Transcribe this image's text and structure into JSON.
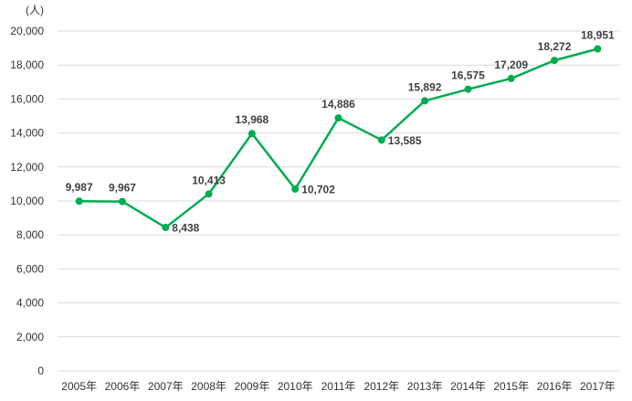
{
  "chart_data": {
    "type": "line",
    "title": "",
    "unit_label": "(人)",
    "xlabel": "",
    "ylabel": "",
    "legend_position": "none",
    "grid": "horizontal",
    "categories": [
      "2005年",
      "2006年",
      "2007年",
      "2008年",
      "2009年",
      "2010年",
      "2011年",
      "2012年",
      "2013年",
      "2014年",
      "2015年",
      "2016年",
      "2017年"
    ],
    "values": [
      9987,
      9967,
      8438,
      10413,
      13968,
      10702,
      14886,
      13585,
      15892,
      16575,
      17209,
      18272,
      18951
    ],
    "point_labels": [
      "9,987",
      "9,967",
      "8,438",
      "10,413",
      "13,968",
      "10,702",
      "14,886",
      "13,585",
      "15,892",
      "16,575",
      "17,209",
      "18,272",
      "18,951"
    ],
    "point_label_positions": [
      "above",
      "above",
      "right",
      "above",
      "above",
      "right",
      "above",
      "right",
      "above",
      "above",
      "above",
      "above",
      "above"
    ],
    "ylim": [
      0,
      20000
    ],
    "ytick_step": 2000,
    "ytick_labels": [
      "0",
      "2,000",
      "4,000",
      "6,000",
      "8,000",
      "10,000",
      "12,000",
      "14,000",
      "16,000",
      "18,000",
      "20,000"
    ],
    "colors": {
      "line": "#00AC50",
      "marker": "#00AC50",
      "data_label": "#404040",
      "axis_text": "#333333",
      "gridline": "#D9D9D9",
      "background": "#FFFFFF"
    }
  }
}
